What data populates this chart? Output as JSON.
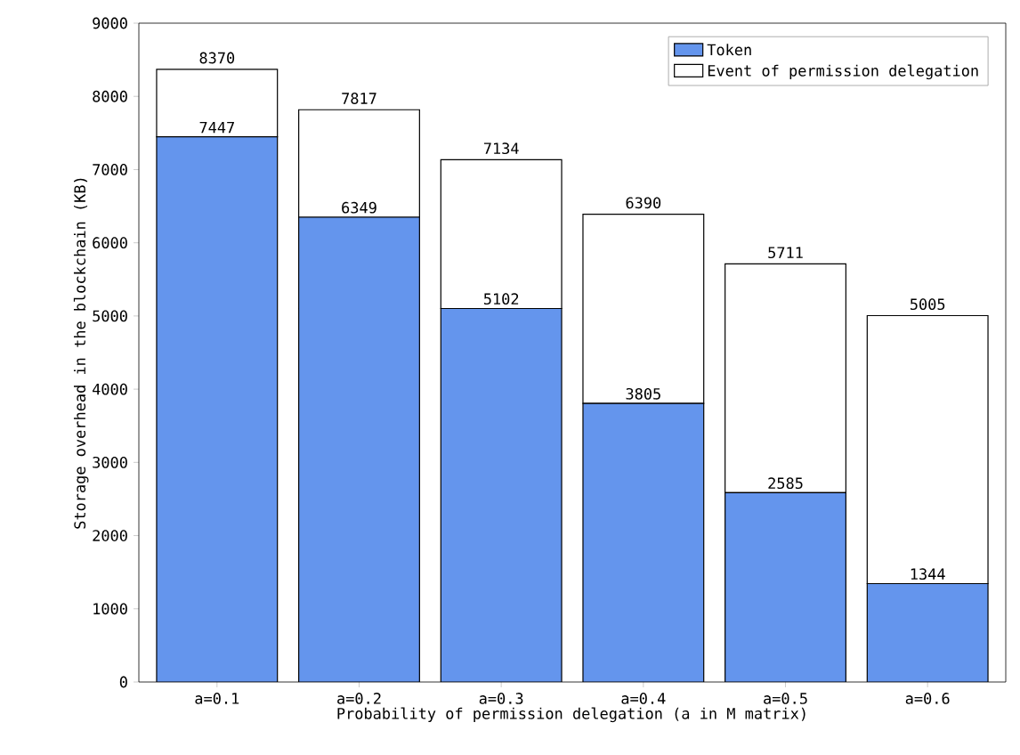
{
  "chart_data": {
    "type": "bar",
    "stacked": true,
    "xlabel": "Probability of permission delegation (a in M matrix)",
    "ylabel": "Storage overhead in the blockchain (KB)",
    "categories": [
      "a=0.1",
      "a=0.2",
      "a=0.3",
      "a=0.4",
      "a=0.5",
      "a=0.6"
    ],
    "series": [
      {
        "name": "Token",
        "color": "#6495ed",
        "values": [
          7447,
          6349,
          5102,
          3805,
          2585,
          1344
        ],
        "value_labels": [
          "7447",
          "6349",
          "5102",
          "3805",
          "2585",
          "1344"
        ]
      },
      {
        "name": "Event of permission delegation",
        "color": "#ffffff",
        "values": [
          923,
          1468,
          2032,
          2585,
          3126,
          3661
        ]
      }
    ],
    "totals": [
      "8370",
      "7817",
      "7134",
      "6390",
      "5711",
      "5005"
    ],
    "ylim": [
      0,
      9000
    ],
    "yticks": [
      0,
      1000,
      2000,
      3000,
      4000,
      5000,
      6000,
      7000,
      8000,
      9000
    ],
    "legend": "top right"
  }
}
